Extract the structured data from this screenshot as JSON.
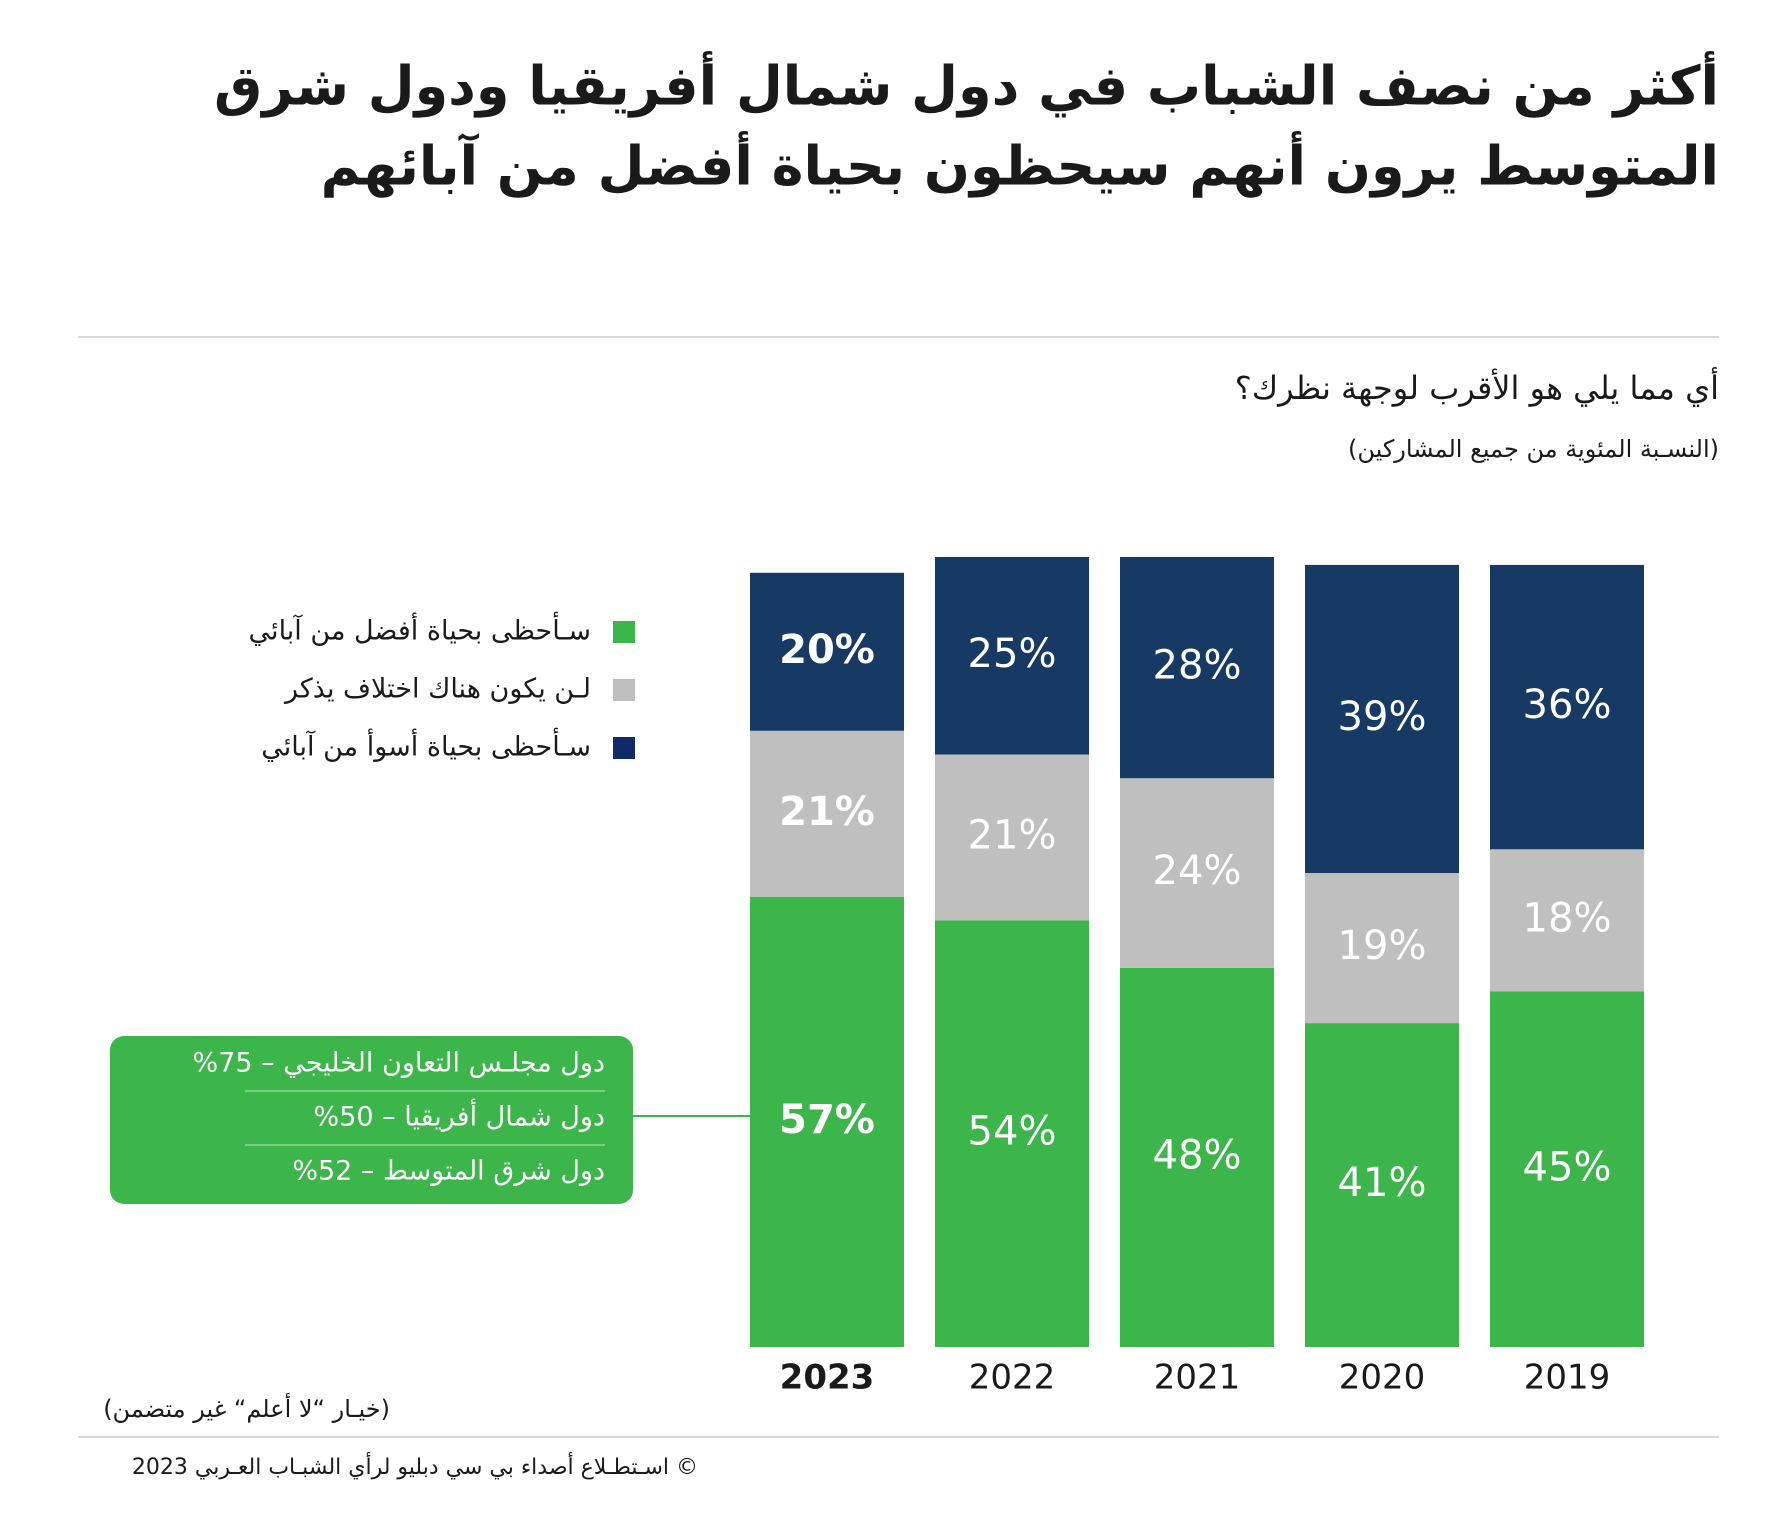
{
  "chart_data": {
    "type": "stacked-bar",
    "title": [
      "أكثر من نصف الشباب في دول شمال أفريقيا ودول شرق",
      "المتوسط يرون أنهم سيحظون بحياة أفضل من آبائهم"
    ],
    "subtitle": "أي مما يلي هو الأقرب لوجهة نظرك؟",
    "note": "(النسـبة المئوية من جميع المشاركين)",
    "categories": [
      "2023",
      "2022",
      "2021",
      "2020",
      "2019"
    ],
    "series": [
      {
        "name": "سـأحظى بحياة أفضل من آبائي",
        "color": "#3cb54a",
        "values": [
          57,
          54,
          48,
          41,
          45
        ],
        "value_labels": [
          "57%",
          "54%",
          "48%",
          "41%",
          "45%"
        ]
      },
      {
        "name": "لـن يكون هناك اختلاف يذكر",
        "color": "#c0bfc0",
        "values": [
          21,
          21,
          24,
          19,
          18
        ],
        "value_labels": [
          "21%",
          "21%",
          "24%",
          "19%",
          "18%"
        ]
      },
      {
        "name": "سـأحظى بحياة أسوأ من آبائي",
        "color": "#163a63",
        "values": [
          20,
          25,
          28,
          39,
          36
        ],
        "value_labels": [
          "20%",
          "25%",
          "28%",
          "39%",
          "36%"
        ]
      }
    ],
    "legend_colors": [
      "#3cb54a",
      "#c0bfc0",
      "#0f2a66"
    ],
    "callout": [
      "دول مجلـس التعاون الخليجي – 75%",
      "دول شمال أفريقيا – 50%",
      "دول شرق المتوسط – 52%"
    ],
    "footnote": "(خيـار “لا أعلم“ غير متضمن)",
    "source": "©  اسـتطـلاع أصداء بي سي دبليو لرأي الشبـاب العـربي 2023"
  }
}
